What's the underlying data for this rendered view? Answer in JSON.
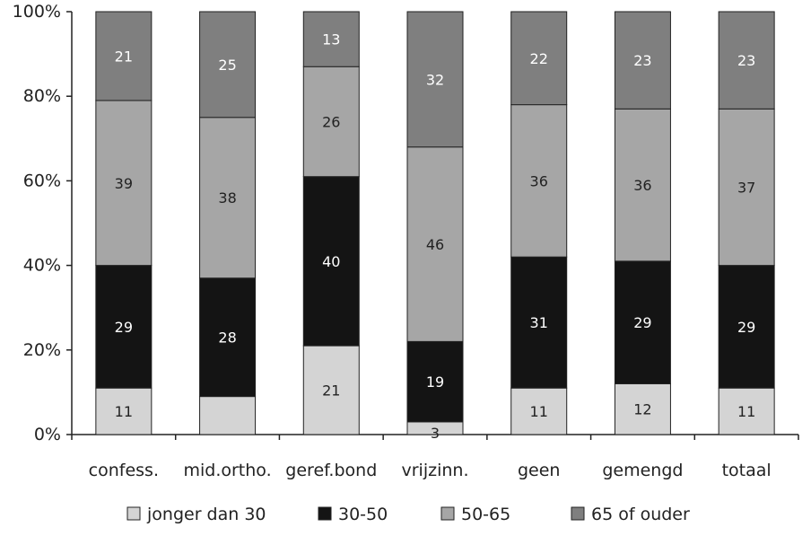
{
  "chart_data": {
    "type": "bar",
    "stacked": true,
    "percent": true,
    "categories": [
      "confess.",
      "mid.ortho.",
      "geref.bond",
      "vrijzinn.",
      "geen",
      "gemengd",
      "totaal"
    ],
    "series": [
      {
        "name": "jonger dan 30",
        "color": "#d4d4d4",
        "label_color": "#222222",
        "values": [
          11,
          9,
          21,
          3,
          11,
          12,
          11
        ],
        "labels": [
          "11",
          "",
          "21",
          "3",
          "11",
          "12",
          "11"
        ]
      },
      {
        "name": "30-50",
        "color": "#141414",
        "label_color": "#ffffff",
        "values": [
          29,
          28,
          40,
          19,
          31,
          29,
          29
        ],
        "labels": [
          "29",
          "28",
          "40",
          "19",
          "31",
          "29",
          "29"
        ]
      },
      {
        "name": "50-65",
        "color": "#a6a6a6",
        "label_color": "#222222",
        "values": [
          39,
          38,
          26,
          46,
          36,
          36,
          37
        ],
        "labels": [
          "39",
          "38",
          "26",
          "46",
          "36",
          "36",
          "37"
        ]
      },
      {
        "name": "65 of ouder",
        "color": "#7f7f7f",
        "label_color": "#ffffff",
        "values": [
          21,
          25,
          13,
          32,
          22,
          23,
          23
        ],
        "labels": [
          "21",
          "25",
          "13",
          "32",
          "22",
          "23",
          "23"
        ]
      }
    ],
    "ylim": [
      0,
      100
    ],
    "yticks": [
      "0%",
      "20%",
      "40%",
      "60%",
      "80%",
      "100%"
    ],
    "grid": false,
    "legend_position": "bottom",
    "title": "",
    "xlabel": "",
    "ylabel": ""
  }
}
